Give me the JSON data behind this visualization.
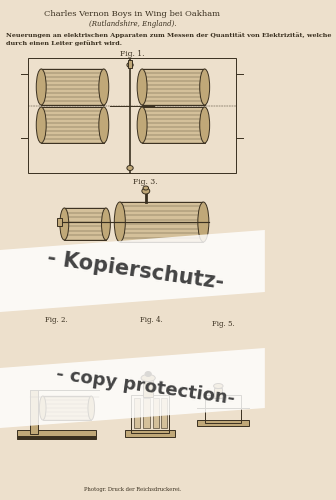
{
  "bg_color": "#ede0cc",
  "title_line1": "Charles Vernon Boys in Wing bei Oakham",
  "title_line2": "(Rutlandshire, England).",
  "subtitle_line1": "Neuerungen an elektrischen Apparaten zum Messen der Quantität von Elektrizität, welche",
  "subtitle_line2": "durch einen Leiter geführt wird.",
  "footer": "Photogr. Druck der Reichsdruckerei.",
  "watermark1": "- Kopierschutz-",
  "watermark2": "- copy protection-",
  "fig1_label": "Fig. 1.",
  "fig2_label": "Fig. 2.",
  "fig3_label": "Fig. 3.",
  "fig4_label": "Fig. 4.",
  "fig5_label": "Fig. 5.",
  "drawing_color": "#3a3020",
  "fill_light": "#d4c09a",
  "fill_mid": "#c0a878",
  "wm_band_color": "#ffffff",
  "wm_text_color": "#444444"
}
